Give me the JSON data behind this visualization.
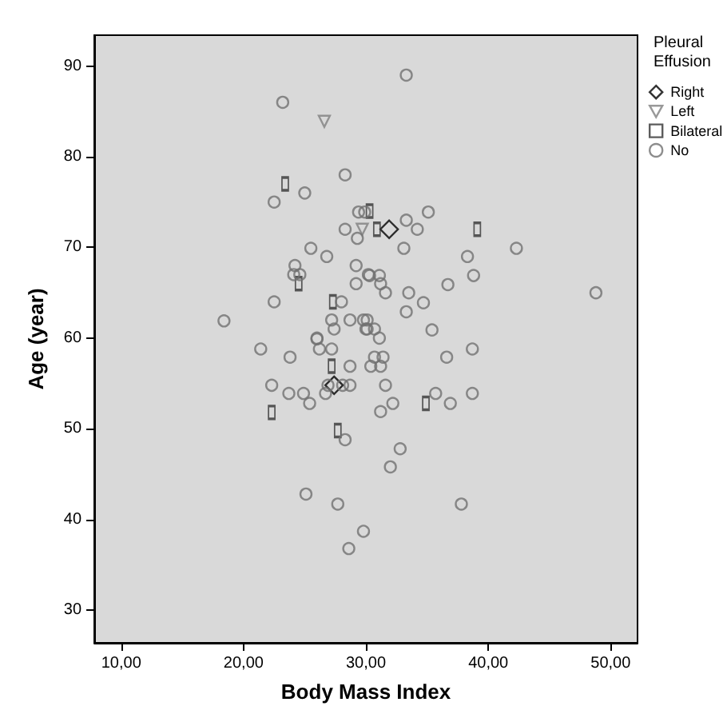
{
  "chart_data": {
    "type": "scatter",
    "xlabel": "Body Mass Index",
    "ylabel": "Age (year)",
    "legend_title": "Pleural Effusion",
    "legend": "right",
    "grid": false,
    "xlim": [
      7.8,
      52.2
    ],
    "ylim": [
      26.4,
      93.4
    ],
    "xticks": [
      {
        "value": 10,
        "label": "10,00"
      },
      {
        "value": 20,
        "label": "20,00"
      },
      {
        "value": 30,
        "label": "30,00"
      },
      {
        "value": 40,
        "label": "40,00"
      },
      {
        "value": 50,
        "label": "50,00"
      }
    ],
    "yticks": [
      30,
      40,
      50,
      60,
      70,
      80,
      90
    ],
    "series": [
      {
        "name": "Right",
        "color": "#000000",
        "marker": "diamond",
        "x": [
          31.9,
          27.4
        ],
        "values": [
          72,
          54.8
        ]
      },
      {
        "name": "Left",
        "color": "#808080",
        "marker": "triangle",
        "x": [
          26.6,
          29.7
        ],
        "values": [
          83.9,
          72
        ]
      },
      {
        "name": "Bilateral",
        "color": "#333333",
        "marker": "square",
        "x": [
          23.4,
          30.3,
          30.9,
          24.5,
          27.3,
          27.2,
          22.3,
          27.7,
          39.1,
          34.9
        ],
        "values": [
          77,
          74,
          72,
          66,
          64,
          56.9,
          51.8,
          49.8,
          72,
          52.8
        ]
      },
      {
        "name": "No",
        "color": "#707070",
        "marker": "circle",
        "x": [
          23.2,
          28.3,
          25.0,
          22.5,
          29.4,
          29.9,
          28.3,
          29.3,
          25.5,
          26.8,
          24.2,
          24.1,
          24.6,
          29.2,
          30.2,
          29.2,
          22.5,
          28.0,
          18.4,
          27.2,
          27.4,
          28.7,
          29.8,
          30.1,
          26.0,
          33.3,
          35.1,
          33.3,
          34.2,
          33.1,
          42.3,
          38.3,
          38.8,
          36.7,
          30.3,
          31.1,
          31.2,
          31.6,
          33.5,
          48.8,
          34.7,
          33.3,
          35.4,
          30.1,
          30.0,
          30.7,
          31.1,
          21.4,
          26.0,
          26.2,
          27.2,
          23.8,
          28.7,
          30.4,
          30.7,
          22.3,
          23.7,
          24.9,
          25.4,
          26.7,
          26.9,
          28.1,
          28.7,
          28.3,
          25.1,
          27.7,
          29.8,
          28.6,
          38.7,
          36.6,
          31.4,
          31.2,
          31.6,
          35.7,
          36.9,
          38.7,
          32.2,
          31.2,
          32.8,
          32.0,
          37.8
        ],
        "values": [
          86.0,
          78.0,
          76.0,
          75.0,
          73.9,
          73.9,
          72.0,
          71.0,
          69.9,
          69.0,
          68.0,
          67.0,
          67.0,
          68.0,
          67.0,
          66.0,
          64.0,
          64.0,
          61.9,
          62.0,
          61.0,
          62.0,
          62.0,
          61.0,
          60.0,
          89.0,
          73.9,
          73.0,
          72.0,
          69.9,
          69.9,
          69.0,
          66.9,
          65.9,
          66.9,
          66.9,
          66.0,
          65.0,
          65.0,
          65.0,
          63.9,
          62.9,
          60.9,
          62.0,
          61.0,
          61.0,
          60.0,
          58.8,
          59.9,
          58.8,
          58.8,
          57.9,
          56.9,
          56.9,
          57.9,
          54.8,
          53.9,
          53.9,
          52.8,
          53.9,
          54.8,
          54.8,
          54.8,
          48.8,
          42.8,
          41.7,
          38.7,
          36.8,
          58.8,
          57.9,
          57.9,
          56.9,
          54.8,
          53.9,
          52.8,
          53.9,
          52.8,
          51.9,
          47.8,
          45.8,
          41.7
        ]
      }
    ]
  }
}
